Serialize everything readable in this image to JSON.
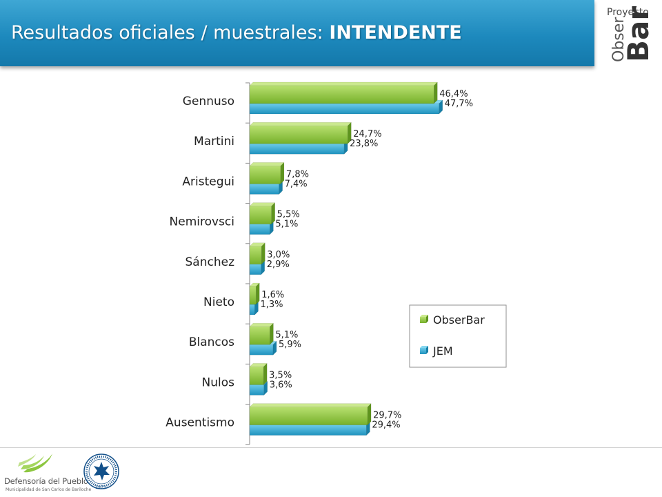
{
  "header": {
    "title_main": "Resultados  oficiales / muestrales: ",
    "title_emph": "INTENDENTE",
    "logo_text_1": "Proyecto",
    "logo_text_2": "Obser",
    "logo_text_3": "Bar"
  },
  "chart_data": {
    "type": "bar",
    "orientation": "horizontal",
    "categories": [
      "Gennuso",
      "Martini",
      "Aristegui",
      "Nemirovsci",
      "Sánchez",
      "Nieto",
      "Blancos",
      "Nulos",
      "Ausentismo"
    ],
    "series": [
      {
        "name": "ObserBar",
        "values": [
          46.4,
          24.7,
          7.8,
          5.5,
          3.0,
          1.6,
          5.1,
          3.5,
          29.7
        ],
        "labels": [
          "46,4%",
          "24,7%",
          "7,8%",
          "5,5%",
          "3,0%",
          "1,6%",
          "5,1%",
          "3,5%",
          "29,7%"
        ]
      },
      {
        "name": "JEM",
        "values": [
          47.7,
          23.8,
          7.4,
          5.1,
          2.9,
          1.3,
          5.9,
          3.6,
          29.4
        ],
        "labels": [
          "47,7%",
          "23,8%",
          "7,4%",
          "5,1%",
          "2,9%",
          "1,3%",
          "5,9%",
          "3,6%",
          "29,4%"
        ]
      }
    ],
    "xlim": [
      0,
      50
    ],
    "grid": false,
    "legend_position": "lower-right"
  },
  "colors": {
    "obserbar": "#8ec43a",
    "jem": "#31a8d0",
    "header": "#1d89bd"
  },
  "footer": {
    "org_name": "Defensoría del Pueblo",
    "org_sub": "Municipalidad de San Carlos de Bariloche",
    "seal_year": "1973"
  }
}
